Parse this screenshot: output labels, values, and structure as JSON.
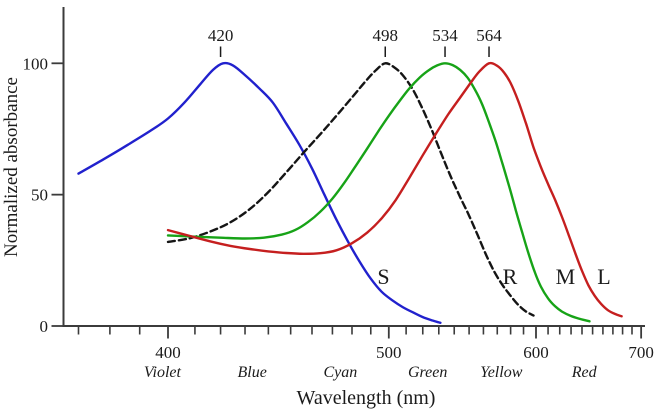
{
  "figure_name": "photoreceptor-absorbance-spectra",
  "colors": {
    "background": "#ffffff",
    "axis": "#3b3b3b",
    "text": "#1b1b1b",
    "s_cone": "#2121cd",
    "rod": "#151515",
    "m_cone": "#17a317",
    "l_cone": "#c51f1f"
  },
  "chart_data": {
    "type": "line",
    "title": "",
    "xlabel": "Wavelength (nm)",
    "ylabel": "Normalized absorbance",
    "x_scale": "linear-in-inverse-wavelength",
    "xlim_nm": [
      367,
      703
    ],
    "ylim": [
      0,
      100
    ],
    "y_ticks": [
      {
        "value": 0,
        "label": "0"
      },
      {
        "value": 50,
        "label": "50"
      },
      {
        "value": 100,
        "label": "100"
      }
    ],
    "x_major_ticks": [
      {
        "nm": 400,
        "label": "400"
      },
      {
        "nm": 500,
        "label": "500"
      },
      {
        "nm": 600,
        "label": "600"
      },
      {
        "nm": 700,
        "label": "700"
      }
    ],
    "x_minor_ticks": {
      "start_nm": 370,
      "end_nm": 690,
      "step_nm": 10
    },
    "grid": false,
    "legend_position": "none",
    "peak_annotations": [
      {
        "text": "420",
        "nm": 420,
        "series": "S"
      },
      {
        "text": "498",
        "nm": 498,
        "series": "R"
      },
      {
        "text": "534",
        "nm": 534,
        "series": "M"
      },
      {
        "text": "564",
        "nm": 564,
        "series": "L"
      }
    ],
    "curve_labels": [
      {
        "text": "S",
        "nm": 497,
        "value": 18.6,
        "color_key": "s_cone"
      },
      {
        "text": "R",
        "nm": 579.5,
        "value": 18.6,
        "color_key": "rod"
      },
      {
        "text": "M",
        "nm": 625,
        "value": 18.6,
        "color_key": "m_cone"
      },
      {
        "text": "L",
        "nm": 661,
        "value": 18.6,
        "color_key": "l_cone"
      }
    ],
    "band_labels": [
      {
        "text": "Violet",
        "nm": 398
      },
      {
        "text": "Blue",
        "nm": 433
      },
      {
        "text": "Cyan",
        "nm": 474
      },
      {
        "text": "Green",
        "nm": 523
      },
      {
        "text": "Yellow",
        "nm": 573
      },
      {
        "text": "Red",
        "nm": 642
      }
    ],
    "series": [
      {
        "name": "S",
        "full_name": "S cone",
        "color_key": "s_cone",
        "dash": null,
        "peak_nm": 420,
        "points": [
          [
            370,
            58
          ],
          [
            378,
            63.5
          ],
          [
            386,
            69
          ],
          [
            394,
            74.5
          ],
          [
            400,
            79
          ],
          [
            406,
            85
          ],
          [
            412,
            92
          ],
          [
            417,
            97.5
          ],
          [
            421,
            100
          ],
          [
            425,
            99.2
          ],
          [
            430,
            95.5
          ],
          [
            436,
            90.5
          ],
          [
            442,
            85
          ],
          [
            448,
            77
          ],
          [
            454,
            69
          ],
          [
            460,
            60
          ],
          [
            466,
            50
          ],
          [
            472,
            40.5
          ],
          [
            478,
            32
          ],
          [
            484,
            24.5
          ],
          [
            490,
            18
          ],
          [
            496,
            13
          ],
          [
            502,
            9.8
          ],
          [
            508,
            7.2
          ],
          [
            514,
            5.2
          ],
          [
            520,
            3.4
          ],
          [
            526,
            2.1
          ],
          [
            531,
            1.2
          ]
        ]
      },
      {
        "name": "R",
        "full_name": "Rod",
        "color_key": "rod",
        "dash": "7 4",
        "peak_nm": 498,
        "points": [
          [
            400,
            32
          ],
          [
            408,
            33.4
          ],
          [
            416,
            36
          ],
          [
            424,
            39.5
          ],
          [
            432,
            44.5
          ],
          [
            440,
            51
          ],
          [
            448,
            58.5
          ],
          [
            456,
            66
          ],
          [
            464,
            73
          ],
          [
            472,
            80
          ],
          [
            480,
            87
          ],
          [
            487,
            93
          ],
          [
            493,
            97.5
          ],
          [
            498,
            100
          ],
          [
            503,
            98.5
          ],
          [
            508,
            95.5
          ],
          [
            514,
            90
          ],
          [
            520,
            82.5
          ],
          [
            526,
            74
          ],
          [
            532,
            65
          ],
          [
            538,
            56.5
          ],
          [
            544,
            49
          ],
          [
            550,
            42
          ],
          [
            556,
            34.5
          ],
          [
            562,
            27
          ],
          [
            568,
            20.5
          ],
          [
            574,
            15.5
          ],
          [
            580,
            11.5
          ],
          [
            586,
            8
          ],
          [
            592,
            5.5
          ],
          [
            598,
            4
          ]
        ]
      },
      {
        "name": "M",
        "full_name": "M cone",
        "color_key": "m_cone",
        "dash": null,
        "peak_nm": 534,
        "points": [
          [
            400,
            34.5
          ],
          [
            410,
            34
          ],
          [
            420,
            33.6
          ],
          [
            430,
            33.3
          ],
          [
            438,
            33.6
          ],
          [
            446,
            34.8
          ],
          [
            452,
            36.5
          ],
          [
            458,
            39.5
          ],
          [
            464,
            43.5
          ],
          [
            470,
            48.5
          ],
          [
            476,
            54.5
          ],
          [
            482,
            61
          ],
          [
            488,
            67.5
          ],
          [
            494,
            74
          ],
          [
            500,
            80
          ],
          [
            506,
            85.5
          ],
          [
            512,
            90.5
          ],
          [
            518,
            94.5
          ],
          [
            524,
            97.5
          ],
          [
            529,
            99.2
          ],
          [
            534,
            100
          ],
          [
            539,
            99.3
          ],
          [
            544,
            97.5
          ],
          [
            549,
            94.5
          ],
          [
            554,
            90
          ],
          [
            559,
            84.5
          ],
          [
            564,
            77.5
          ],
          [
            569,
            70
          ],
          [
            574,
            61.5
          ],
          [
            579,
            53
          ],
          [
            584,
            44
          ],
          [
            589,
            35.5
          ],
          [
            594,
            27.5
          ],
          [
            599,
            20.5
          ],
          [
            604,
            15
          ],
          [
            610,
            10.5
          ],
          [
            616,
            7.5
          ],
          [
            622,
            5.5
          ],
          [
            630,
            3.8
          ],
          [
            638,
            2.7
          ],
          [
            647,
            1.8
          ]
        ]
      },
      {
        "name": "L",
        "full_name": "L cone",
        "color_key": "l_cone",
        "dash": null,
        "peak_nm": 564,
        "points": [
          [
            400,
            36.5
          ],
          [
            408,
            34.3
          ],
          [
            416,
            32.2
          ],
          [
            424,
            30.5
          ],
          [
            432,
            29.3
          ],
          [
            440,
            28.4
          ],
          [
            448,
            27.8
          ],
          [
            456,
            27.5
          ],
          [
            464,
            27.7
          ],
          [
            472,
            28.8
          ],
          [
            480,
            31.5
          ],
          [
            488,
            35.5
          ],
          [
            496,
            41
          ],
          [
            504,
            48
          ],
          [
            512,
            56.5
          ],
          [
            520,
            65
          ],
          [
            528,
            73
          ],
          [
            536,
            80.5
          ],
          [
            544,
            87
          ],
          [
            551,
            92.5
          ],
          [
            557,
            96.8
          ],
          [
            564,
            100
          ],
          [
            570,
            99
          ],
          [
            575,
            96.5
          ],
          [
            580,
            92.5
          ],
          [
            586,
            85.5
          ],
          [
            592,
            77
          ],
          [
            598,
            68
          ],
          [
            604,
            60.5
          ],
          [
            610,
            54
          ],
          [
            616,
            48
          ],
          [
            622,
            41.5
          ],
          [
            628,
            34.5
          ],
          [
            634,
            27.5
          ],
          [
            640,
            21
          ],
          [
            646,
            15.5
          ],
          [
            652,
            11.5
          ],
          [
            658,
            8.5
          ],
          [
            665,
            6
          ],
          [
            672,
            4.6
          ],
          [
            679,
            3.7
          ]
        ]
      }
    ]
  }
}
